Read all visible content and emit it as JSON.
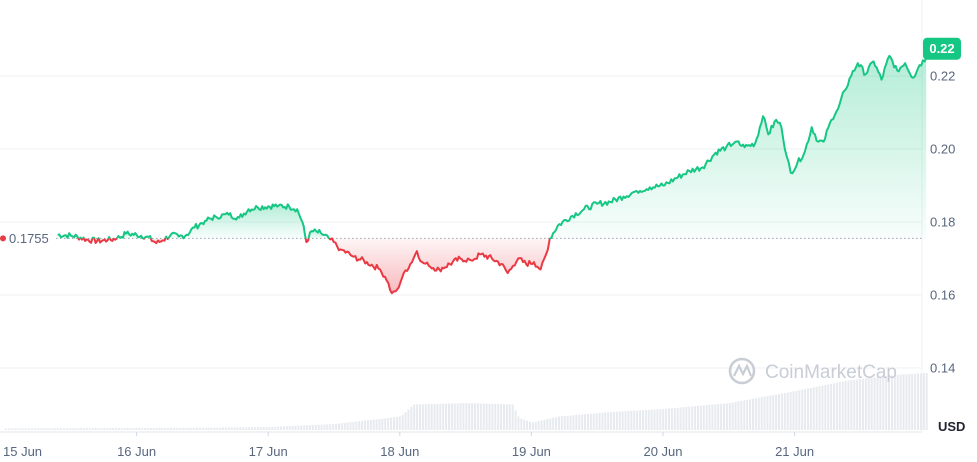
{
  "chart_data": {
    "type": "area",
    "baseline": 0.1755,
    "baseline_label": "0.1755",
    "current_label": "0.22",
    "current_value": 0.222,
    "unit_label": "USD",
    "watermark": "CoinMarketCap",
    "ylim": [
      0.125,
      0.235
    ],
    "xlim": [
      0,
      7.0
    ],
    "yticks": [
      {
        "value": 0.14,
        "label": "0.14"
      },
      {
        "value": 0.16,
        "label": "0.16"
      },
      {
        "value": 0.18,
        "label": "0.18"
      },
      {
        "value": 0.2,
        "label": "0.20"
      },
      {
        "value": 0.22,
        "label": "0.22"
      }
    ],
    "xticks": [
      {
        "value": 0,
        "label": "15 Jun"
      },
      {
        "value": 1,
        "label": "16 Jun"
      },
      {
        "value": 2,
        "label": "17 Jun"
      },
      {
        "value": 3,
        "label": "18 Jun"
      },
      {
        "value": 4,
        "label": "19 Jun"
      },
      {
        "value": 5,
        "label": "20 Jun"
      },
      {
        "value": 6,
        "label": "21 Jun"
      }
    ],
    "x_unit": "days since 15 Jun",
    "points": [
      [
        0.4,
        0.1765
      ],
      [
        0.5,
        0.1763
      ],
      [
        0.55,
        0.176
      ],
      [
        0.62,
        0.1752
      ],
      [
        0.7,
        0.1748
      ],
      [
        0.78,
        0.175
      ],
      [
        0.85,
        0.1755
      ],
      [
        0.92,
        0.1768
      ],
      [
        1.0,
        0.1765
      ],
      [
        1.08,
        0.176
      ],
      [
        1.15,
        0.1742
      ],
      [
        1.2,
        0.175
      ],
      [
        1.26,
        0.1765
      ],
      [
        1.32,
        0.176
      ],
      [
        1.38,
        0.1765
      ],
      [
        1.44,
        0.1785
      ],
      [
        1.52,
        0.1803
      ],
      [
        1.6,
        0.1815
      ],
      [
        1.7,
        0.182
      ],
      [
        1.78,
        0.1812
      ],
      [
        1.85,
        0.1835
      ],
      [
        1.92,
        0.184
      ],
      [
        2.0,
        0.1843
      ],
      [
        2.08,
        0.1845
      ],
      [
        2.16,
        0.1842
      ],
      [
        2.22,
        0.1835
      ],
      [
        2.26,
        0.18
      ],
      [
        2.29,
        0.1745
      ],
      [
        2.33,
        0.1775
      ],
      [
        2.4,
        0.177
      ],
      [
        2.46,
        0.1756
      ],
      [
        2.55,
        0.1725
      ],
      [
        2.65,
        0.1705
      ],
      [
        2.75,
        0.169
      ],
      [
        2.85,
        0.167
      ],
      [
        2.9,
        0.164
      ],
      [
        2.94,
        0.1605
      ],
      [
        2.98,
        0.1615
      ],
      [
        3.03,
        0.166
      ],
      [
        3.08,
        0.1685
      ],
      [
        3.13,
        0.172
      ],
      [
        3.17,
        0.169
      ],
      [
        3.22,
        0.168
      ],
      [
        3.3,
        0.167
      ],
      [
        3.38,
        0.1685
      ],
      [
        3.46,
        0.17
      ],
      [
        3.54,
        0.1695
      ],
      [
        3.62,
        0.1712
      ],
      [
        3.7,
        0.17
      ],
      [
        3.77,
        0.1685
      ],
      [
        3.82,
        0.166
      ],
      [
        3.86,
        0.168
      ],
      [
        3.9,
        0.17
      ],
      [
        3.96,
        0.1685
      ],
      [
        4.02,
        0.169
      ],
      [
        4.07,
        0.167
      ],
      [
        4.11,
        0.171
      ],
      [
        4.14,
        0.1755
      ],
      [
        4.2,
        0.179
      ],
      [
        4.3,
        0.1815
      ],
      [
        4.4,
        0.1835
      ],
      [
        4.5,
        0.185
      ],
      [
        4.6,
        0.1855
      ],
      [
        4.7,
        0.187
      ],
      [
        4.8,
        0.1885
      ],
      [
        4.9,
        0.1895
      ],
      [
        5.0,
        0.19
      ],
      [
        5.1,
        0.192
      ],
      [
        5.2,
        0.194
      ],
      [
        5.3,
        0.195
      ],
      [
        5.4,
        0.199
      ],
      [
        5.48,
        0.2005
      ],
      [
        5.55,
        0.202
      ],
      [
        5.62,
        0.2005
      ],
      [
        5.7,
        0.2015
      ],
      [
        5.76,
        0.209
      ],
      [
        5.8,
        0.204
      ],
      [
        5.86,
        0.208
      ],
      [
        5.9,
        0.206
      ],
      [
        5.94,
        0.198
      ],
      [
        5.97,
        0.1935
      ],
      [
        6.02,
        0.196
      ],
      [
        6.08,
        0.1995
      ],
      [
        6.13,
        0.206
      ],
      [
        6.18,
        0.202
      ],
      [
        6.22,
        0.202
      ],
      [
        6.28,
        0.208
      ],
      [
        6.33,
        0.211
      ],
      [
        6.38,
        0.216
      ],
      [
        6.43,
        0.22
      ],
      [
        6.48,
        0.2235
      ],
      [
        6.54,
        0.2205
      ],
      [
        6.6,
        0.224
      ],
      [
        6.66,
        0.219
      ],
      [
        6.72,
        0.2255
      ],
      [
        6.78,
        0.2215
      ],
      [
        6.84,
        0.2235
      ],
      [
        6.9,
        0.2195
      ],
      [
        6.95,
        0.223
      ],
      [
        7.0,
        0.225
      ]
    ],
    "volume": [
      [
        0.0,
        0.01
      ],
      [
        0.4,
        0.012
      ],
      [
        1.0,
        0.013
      ],
      [
        1.5,
        0.015
      ],
      [
        2.0,
        0.02
      ],
      [
        2.5,
        0.04
      ],
      [
        3.0,
        0.09
      ],
      [
        3.1,
        0.17
      ],
      [
        3.5,
        0.18
      ],
      [
        3.85,
        0.17
      ],
      [
        3.9,
        0.08
      ],
      [
        4.0,
        0.05
      ],
      [
        4.2,
        0.09
      ],
      [
        4.6,
        0.12
      ],
      [
        5.0,
        0.14
      ],
      [
        5.5,
        0.18
      ],
      [
        6.0,
        0.26
      ],
      [
        6.4,
        0.33
      ],
      [
        6.8,
        0.37
      ],
      [
        7.0,
        0.38
      ]
    ],
    "colors": {
      "up": "#16c784",
      "down": "#ea3943"
    }
  }
}
